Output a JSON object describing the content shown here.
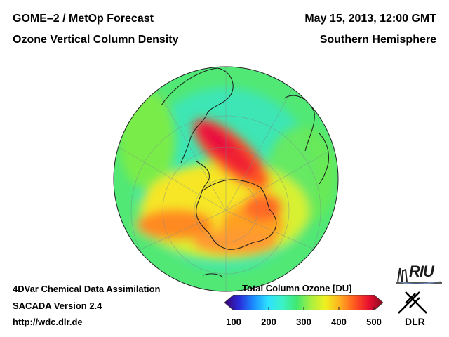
{
  "header": {
    "title_line1": "GOME–2 / MetOp Forecast",
    "title_line2": "Ozone Vertical Column Density",
    "date": "May 15, 2013, 12:00 GMT",
    "region": "Southern Hemisphere"
  },
  "footer": {
    "method": "4DVar Chemical Data Assimilation",
    "version": "SACADA Version 2.4",
    "url": "http://wdc.dlr.de"
  },
  "colorbar": {
    "title": "Total Column Ozone [DU]",
    "ticks": [
      {
        "value": 100,
        "label": "100"
      },
      {
        "value": 200,
        "label": "200"
      },
      {
        "value": 300,
        "label": "300"
      },
      {
        "value": 400,
        "label": "400"
      },
      {
        "value": 500,
        "label": "500"
      }
    ],
    "range": [
      100,
      500
    ],
    "colors": [
      "#3b0070",
      "#2a2ad8",
      "#1a8cff",
      "#2de0ff",
      "#3cf2c8",
      "#40e870",
      "#a8f040",
      "#f0f020",
      "#ffb020",
      "#ff5a1e",
      "#e81030",
      "#8a0a20"
    ]
  },
  "logos": {
    "riu": "RIU",
    "dlr": "DLR"
  },
  "map_data": {
    "projection": "orthographic, south pole centered",
    "background_ozone_du": 310,
    "features": [
      {
        "name": "ozone-maximum-south-america-antarctic-peninsula",
        "ozone_du": 480
      },
      {
        "name": "elevated-ozone-collar-east-antarctica",
        "ozone_du": 400
      },
      {
        "name": "low-ozone-south-pacific",
        "ozone_du": 290
      }
    ]
  }
}
